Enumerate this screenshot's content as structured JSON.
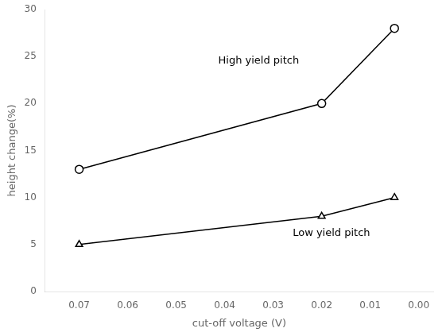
{
  "chart_data": {
    "type": "line",
    "x": [
      0.07,
      0.02,
      0.005
    ],
    "series": [
      {
        "color": "#000000",
        "marker": "circle",
        "line_style": "solid",
        "values": [
          13,
          20,
          28
        ]
      },
      {
        "color": "#000000",
        "marker": "triangle",
        "line_style": "solid",
        "values": [
          5,
          8,
          10
        ]
      }
    ],
    "xlabel": "cut-off voltage (V)",
    "ylabel": "height change(%)",
    "xlim": [
      0.077,
      -0.003
    ],
    "xticks": [
      0.07,
      0.06,
      0.05,
      0.04,
      0.03,
      0.02,
      0.01,
      {
        "value": 0,
        "label": "0.00"
      }
    ],
    "ylim": [
      0,
      30
    ],
    "yticks": [
      0,
      5,
      10,
      15,
      20,
      25,
      30
    ],
    "annotations": [
      {
        "text": "High yield pitch",
        "x": 0.033,
        "y": 24.5
      },
      {
        "text": "Low yield pitch",
        "x": 0.018,
        "y": 6.2
      }
    ],
    "grid": false
  }
}
